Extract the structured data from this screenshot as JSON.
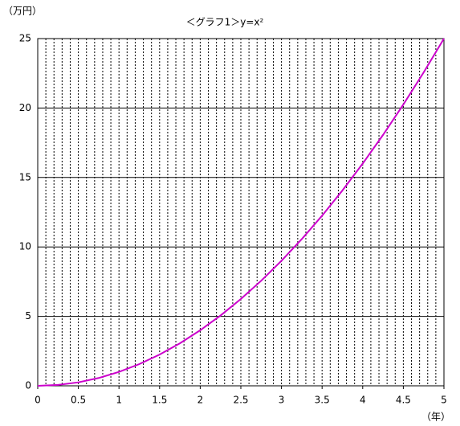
{
  "chart_data": {
    "type": "line",
    "title": "＜グラフ1＞y=x²",
    "y_label": "（万円）",
    "x_label": "（年）",
    "x": [
      0,
      0.25,
      0.5,
      0.75,
      1,
      1.25,
      1.5,
      1.75,
      2,
      2.25,
      2.5,
      2.75,
      3,
      3.25,
      3.5,
      3.75,
      4,
      4.25,
      4.5,
      4.75,
      5
    ],
    "series": [
      {
        "color": "#cc00cc",
        "values": [
          0,
          0.0625,
          0.25,
          0.5625,
          1,
          1.5625,
          2.25,
          3.0625,
          4,
          5.0625,
          6.25,
          7.5625,
          9,
          10.5625,
          12.25,
          14.0625,
          16,
          18.0625,
          20.25,
          22.5625,
          25
        ]
      }
    ],
    "xlim": [
      0,
      5
    ],
    "ylim": [
      0,
      25
    ],
    "xticks": [
      0,
      0.5,
      1,
      1.5,
      2,
      2.5,
      3,
      3.5,
      4,
      4.5,
      5
    ],
    "yticks": [
      0,
      5,
      10,
      15,
      20,
      25
    ],
    "x_minor_grid": [
      0.1,
      0.2,
      0.3,
      0.4,
      0.5,
      0.6,
      0.7,
      0.8,
      0.9,
      1,
      1.1,
      1.2,
      1.3,
      1.4,
      1.5,
      1.6,
      1.7,
      1.8,
      1.9,
      2,
      2.1,
      2.2,
      2.3,
      2.4,
      2.5,
      2.6,
      2.7,
      2.8,
      2.9,
      3,
      3.1,
      3.2,
      3.3,
      3.4,
      3.5,
      3.6,
      3.7,
      3.8,
      3.9,
      4,
      4.1,
      4.2,
      4.3,
      4.4,
      4.5,
      4.6,
      4.7,
      4.8,
      4.9
    ],
    "grid": true
  }
}
